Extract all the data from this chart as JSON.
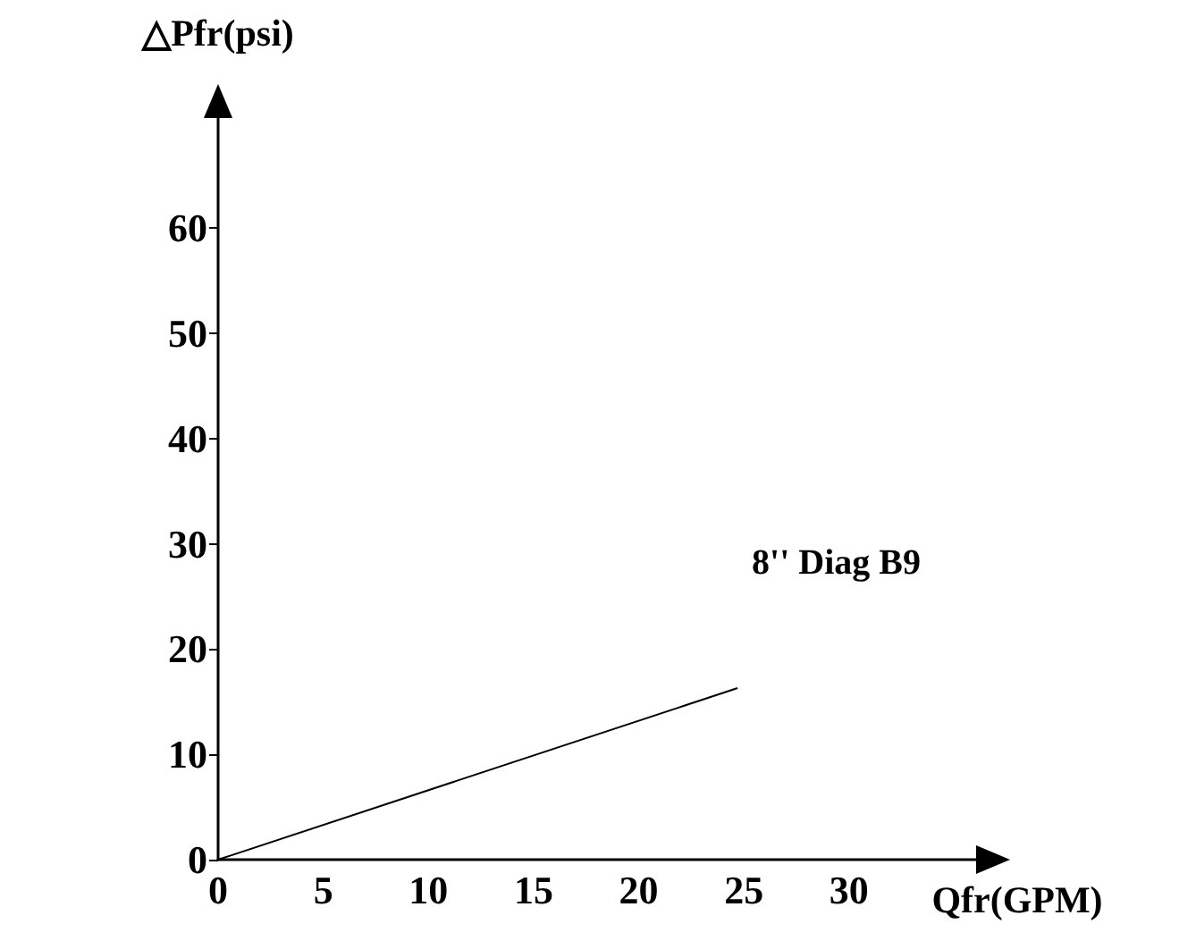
{
  "chart_data": {
    "type": "line",
    "xlabel": "Qfr(GPM)",
    "ylabel": "△Pfr(psi)",
    "x": [
      0,
      24.7
    ],
    "series": [
      {
        "name": "8'' Diag B9",
        "color": "#000000",
        "values": [
          0,
          16.3
        ]
      }
    ],
    "xlim": [
      0,
      36.3
    ],
    "ylim": [
      0,
      72
    ],
    "xticks": [
      0,
      5,
      10,
      15,
      20,
      25,
      30
    ],
    "yticks": [
      0,
      10,
      20,
      30,
      40,
      50,
      60
    ],
    "grid": false,
    "legend": false,
    "marker": "none",
    "line_style": "solid"
  }
}
